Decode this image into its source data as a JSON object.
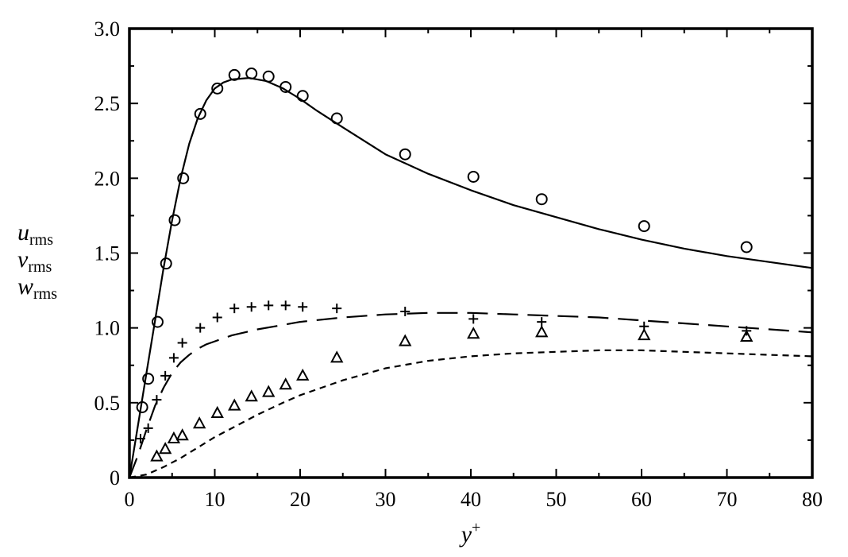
{
  "chart_data": {
    "type": "line",
    "xlabel": "y",
    "xlabel_sup": "+",
    "ylabel_lines": [
      {
        "base": "u",
        "sub": "rms"
      },
      {
        "base": "v",
        "sub": "rms"
      },
      {
        "base": "w",
        "sub": "rms"
      }
    ],
    "xlim": [
      0,
      80
    ],
    "ylim": [
      0,
      3.0
    ],
    "x_ticks": [
      "0",
      "10",
      "20",
      "30",
      "40",
      "50",
      "60",
      "70",
      "80"
    ],
    "y_ticks": [
      "0",
      "0.5",
      "1.0",
      "1.5",
      "2.0",
      "2.5",
      "3.0"
    ],
    "grid": false,
    "legend": "none",
    "series": [
      {
        "style": "solid",
        "points": [
          [
            0,
            0
          ],
          [
            1,
            0.35
          ],
          [
            2,
            0.7
          ],
          [
            3,
            1.05
          ],
          [
            4,
            1.4
          ],
          [
            5,
            1.72
          ],
          [
            6,
            2.0
          ],
          [
            7,
            2.23
          ],
          [
            8,
            2.4
          ],
          [
            9,
            2.52
          ],
          [
            10,
            2.6
          ],
          [
            11,
            2.64
          ],
          [
            12,
            2.66
          ],
          [
            14,
            2.67
          ],
          [
            16,
            2.65
          ],
          [
            18,
            2.6
          ],
          [
            20,
            2.53
          ],
          [
            22,
            2.45
          ],
          [
            25,
            2.34
          ],
          [
            30,
            2.16
          ],
          [
            35,
            2.03
          ],
          [
            40,
            1.92
          ],
          [
            45,
            1.82
          ],
          [
            50,
            1.74
          ],
          [
            55,
            1.66
          ],
          [
            60,
            1.59
          ],
          [
            65,
            1.53
          ],
          [
            70,
            1.48
          ],
          [
            75,
            1.44
          ],
          [
            80,
            1.4
          ]
        ]
      },
      {
        "style": "long-dash",
        "points": [
          [
            0,
            0
          ],
          [
            1,
            0.15
          ],
          [
            2,
            0.32
          ],
          [
            3,
            0.48
          ],
          [
            4,
            0.6
          ],
          [
            5,
            0.7
          ],
          [
            6,
            0.77
          ],
          [
            7,
            0.82
          ],
          [
            8,
            0.86
          ],
          [
            9,
            0.89
          ],
          [
            10,
            0.91
          ],
          [
            12,
            0.95
          ],
          [
            15,
            0.99
          ],
          [
            18,
            1.02
          ],
          [
            20,
            1.04
          ],
          [
            25,
            1.07
          ],
          [
            30,
            1.09
          ],
          [
            35,
            1.1
          ],
          [
            40,
            1.1
          ],
          [
            45,
            1.09
          ],
          [
            50,
            1.08
          ],
          [
            55,
            1.07
          ],
          [
            60,
            1.05
          ],
          [
            65,
            1.03
          ],
          [
            70,
            1.01
          ],
          [
            75,
            0.99
          ],
          [
            80,
            0.97
          ]
        ]
      },
      {
        "style": "short-dash",
        "points": [
          [
            0,
            0
          ],
          [
            2,
            0.02
          ],
          [
            4,
            0.07
          ],
          [
            6,
            0.13
          ],
          [
            8,
            0.2
          ],
          [
            10,
            0.27
          ],
          [
            12,
            0.33
          ],
          [
            15,
            0.42
          ],
          [
            18,
            0.5
          ],
          [
            20,
            0.55
          ],
          [
            25,
            0.65
          ],
          [
            30,
            0.73
          ],
          [
            35,
            0.78
          ],
          [
            40,
            0.81
          ],
          [
            45,
            0.83
          ],
          [
            50,
            0.84
          ],
          [
            55,
            0.85
          ],
          [
            60,
            0.85
          ],
          [
            65,
            0.84
          ],
          [
            70,
            0.83
          ],
          [
            75,
            0.82
          ],
          [
            80,
            0.81
          ]
        ]
      }
    ],
    "markers": [
      {
        "symbol": "circle",
        "points": [
          [
            1.5,
            0.47
          ],
          [
            2.2,
            0.66
          ],
          [
            3.3,
            1.04
          ],
          [
            4.3,
            1.43
          ],
          [
            5.3,
            1.72
          ],
          [
            6.3,
            2.0
          ],
          [
            8.3,
            2.43
          ],
          [
            10.3,
            2.6
          ],
          [
            12.3,
            2.69
          ],
          [
            14.3,
            2.7
          ],
          [
            16.3,
            2.68
          ],
          [
            18.3,
            2.61
          ],
          [
            20.3,
            2.55
          ],
          [
            24.3,
            2.4
          ],
          [
            32.3,
            2.16
          ],
          [
            40.3,
            2.01
          ],
          [
            48.3,
            1.86
          ],
          [
            60.3,
            1.68
          ],
          [
            72.3,
            1.54
          ]
        ]
      },
      {
        "symbol": "plus",
        "points": [
          [
            1.3,
            0.26
          ],
          [
            2.2,
            0.33
          ],
          [
            3.2,
            0.52
          ],
          [
            4.2,
            0.68
          ],
          [
            5.2,
            0.8
          ],
          [
            6.2,
            0.9
          ],
          [
            8.3,
            1.0
          ],
          [
            10.3,
            1.07
          ],
          [
            12.3,
            1.13
          ],
          [
            14.3,
            1.14
          ],
          [
            16.3,
            1.15
          ],
          [
            18.3,
            1.15
          ],
          [
            20.3,
            1.14
          ],
          [
            24.3,
            1.13
          ],
          [
            32.3,
            1.11
          ],
          [
            40.3,
            1.06
          ],
          [
            48.3,
            1.04
          ],
          [
            60.3,
            1.01
          ],
          [
            72.3,
            0.98
          ]
        ]
      },
      {
        "symbol": "triangle",
        "points": [
          [
            3.2,
            0.14
          ],
          [
            4.2,
            0.19
          ],
          [
            5.2,
            0.26
          ],
          [
            6.2,
            0.28
          ],
          [
            8.2,
            0.36
          ],
          [
            10.3,
            0.43
          ],
          [
            12.3,
            0.48
          ],
          [
            14.3,
            0.54
          ],
          [
            16.3,
            0.57
          ],
          [
            18.3,
            0.62
          ],
          [
            20.3,
            0.68
          ],
          [
            24.3,
            0.8
          ],
          [
            32.3,
            0.91
          ],
          [
            40.3,
            0.96
          ],
          [
            48.3,
            0.97
          ],
          [
            60.3,
            0.95
          ],
          [
            72.3,
            0.94
          ]
        ]
      }
    ]
  }
}
